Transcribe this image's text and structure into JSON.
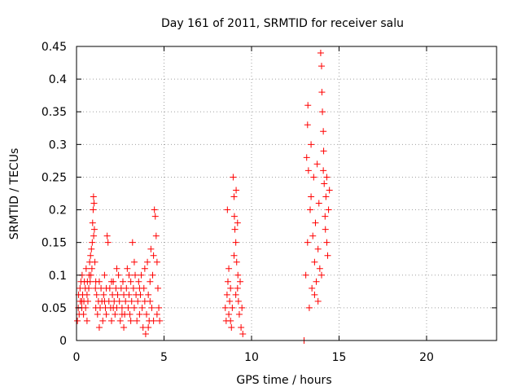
{
  "chart_data": {
    "type": "scatter",
    "title": "Day 161 of 2011, SRMTID for receiver salu",
    "xlabel": "GPS time / hours",
    "ylabel": "SRMTID / TECUs",
    "xlim": [
      0,
      24
    ],
    "ylim": [
      0,
      0.45
    ],
    "xticks": [
      0,
      5,
      10,
      15,
      20
    ],
    "xtick_labels": [
      "0",
      "5",
      "10",
      "15",
      "20"
    ],
    "yticks": [
      0,
      0.05,
      0.1,
      0.15,
      0.2,
      0.25,
      0.3,
      0.35,
      0.4,
      0.45
    ],
    "ytick_labels": [
      "0",
      "0.05",
      "0.1",
      "0.15",
      "0.2",
      "0.25",
      "0.3",
      "0.35",
      "0.4",
      "0.45"
    ],
    "grid": true,
    "marker": "plus",
    "color": "#ff0000",
    "series": [
      {
        "name": "SRMTID",
        "points": [
          [
            0.05,
            0.03
          ],
          [
            0.1,
            0.05
          ],
          [
            0.12,
            0.07
          ],
          [
            0.15,
            0.04
          ],
          [
            0.2,
            0.08
          ],
          [
            0.22,
            0.06
          ],
          [
            0.25,
            0.09
          ],
          [
            0.3,
            0.05
          ],
          [
            0.32,
            0.1
          ],
          [
            0.35,
            0.07
          ],
          [
            0.4,
            0.04
          ],
          [
            0.42,
            0.06
          ],
          [
            0.45,
            0.09
          ],
          [
            0.5,
            0.08
          ],
          [
            0.52,
            0.05
          ],
          [
            0.55,
            0.11
          ],
          [
            0.6,
            0.07
          ],
          [
            0.62,
            0.09
          ],
          [
            0.65,
            0.06
          ],
          [
            0.7,
            0.08
          ],
          [
            0.72,
            0.1
          ],
          [
            0.75,
            0.12
          ],
          [
            0.78,
            0.09
          ],
          [
            0.8,
            0.13
          ],
          [
            0.82,
            0.1
          ],
          [
            0.85,
            0.14
          ],
          [
            0.88,
            0.11
          ],
          [
            0.9,
            0.15
          ],
          [
            0.92,
            0.18
          ],
          [
            0.95,
            0.2
          ],
          [
            0.97,
            0.22
          ],
          [
            1.0,
            0.21
          ],
          [
            1.02,
            0.17
          ],
          [
            1.05,
            0.12
          ],
          [
            0.98,
            0.16
          ],
          [
            1.08,
            0.08
          ],
          [
            1.1,
            0.05
          ],
          [
            1.15,
            0.07
          ],
          [
            1.2,
            0.04
          ],
          [
            1.25,
            0.06
          ],
          [
            1.3,
            0.09
          ],
          [
            1.35,
            0.05
          ],
          [
            1.4,
            0.08
          ],
          [
            1.45,
            0.06
          ],
          [
            1.5,
            0.03
          ],
          [
            1.55,
            0.07
          ],
          [
            1.6,
            0.1
          ],
          [
            1.65,
            0.05
          ],
          [
            1.7,
            0.04
          ],
          [
            1.75,
            0.16
          ],
          [
            1.8,
            0.15
          ],
          [
            1.85,
            0.06
          ],
          [
            1.9,
            0.08
          ],
          [
            1.95,
            0.05
          ],
          [
            2.0,
            0.03
          ],
          [
            2.05,
            0.07
          ],
          [
            2.1,
            0.09
          ],
          [
            2.15,
            0.06
          ],
          [
            2.2,
            0.04
          ],
          [
            2.25,
            0.08
          ],
          [
            2.3,
            0.05
          ],
          [
            2.35,
            0.07
          ],
          [
            2.4,
            0.1
          ],
          [
            2.45,
            0.06
          ],
          [
            2.5,
            0.03
          ],
          [
            2.55,
            0.08
          ],
          [
            2.6,
            0.05
          ],
          [
            2.65,
            0.09
          ],
          [
            2.7,
            0.07
          ],
          [
            2.75,
            0.04
          ],
          [
            2.8,
            0.06
          ],
          [
            2.85,
            0.08
          ],
          [
            2.9,
            0.11
          ],
          [
            2.95,
            0.05
          ],
          [
            3.0,
            0.07
          ],
          [
            3.05,
            0.04
          ],
          [
            3.1,
            0.09
          ],
          [
            3.15,
            0.06
          ],
          [
            3.2,
            0.15
          ],
          [
            3.25,
            0.08
          ],
          [
            3.3,
            0.05
          ],
          [
            3.35,
            0.1
          ],
          [
            3.4,
            0.07
          ],
          [
            3.45,
            0.03
          ],
          [
            3.5,
            0.06
          ],
          [
            3.55,
            0.09
          ],
          [
            3.6,
            0.04
          ],
          [
            3.65,
            0.07
          ],
          [
            3.7,
            0.1
          ],
          [
            3.75,
            0.05
          ],
          [
            3.8,
            0.02
          ],
          [
            3.85,
            0.08
          ],
          [
            3.9,
            0.06
          ],
          [
            3.95,
            0.01
          ],
          [
            4.0,
            0.04
          ],
          [
            4.05,
            0.12
          ],
          [
            4.1,
            0.07
          ],
          [
            4.15,
            0.03
          ],
          [
            4.2,
            0.09
          ],
          [
            4.25,
            0.14
          ],
          [
            4.3,
            0.05
          ],
          [
            4.35,
            0.1
          ],
          [
            4.4,
            0.13
          ],
          [
            4.45,
            0.2
          ],
          [
            4.5,
            0.19
          ],
          [
            4.55,
            0.16
          ],
          [
            4.6,
            0.12
          ],
          [
            4.65,
            0.08
          ],
          [
            4.7,
            0.05
          ],
          [
            4.75,
            0.03
          ],
          [
            0.3,
            0.06
          ],
          [
            0.6,
            0.03
          ],
          [
            1.1,
            0.09
          ],
          [
            1.6,
            0.06
          ],
          [
            2.1,
            0.05
          ],
          [
            2.6,
            0.04
          ],
          [
            3.1,
            0.03
          ],
          [
            3.6,
            0.08
          ],
          [
            4.1,
            0.02
          ],
          [
            4.6,
            0.04
          ],
          [
            1.3,
            0.02
          ],
          [
            2.0,
            0.09
          ],
          [
            2.7,
            0.02
          ],
          [
            3.3,
            0.12
          ],
          [
            3.9,
            0.11
          ],
          [
            4.2,
            0.06
          ],
          [
            4.4,
            0.03
          ],
          [
            3.0,
            0.1
          ],
          [
            2.3,
            0.11
          ],
          [
            1.7,
            0.08
          ],
          [
            8.5,
            0.05
          ],
          [
            8.55,
            0.03
          ],
          [
            8.6,
            0.07
          ],
          [
            8.62,
            0.2
          ],
          [
            8.65,
            0.09
          ],
          [
            8.7,
            0.04
          ],
          [
            8.75,
            0.06
          ],
          [
            8.8,
            0.08
          ],
          [
            8.85,
            0.02
          ],
          [
            8.9,
            0.05
          ],
          [
            8.95,
            0.25
          ],
          [
            9.0,
            0.22
          ],
          [
            9.02,
            0.19
          ],
          [
            9.05,
            0.17
          ],
          [
            9.1,
            0.15
          ],
          [
            9.12,
            0.23
          ],
          [
            9.15,
            0.12
          ],
          [
            9.2,
            0.08
          ],
          [
            9.22,
            0.1
          ],
          [
            9.25,
            0.06
          ],
          [
            9.3,
            0.04
          ],
          [
            9.35,
            0.09
          ],
          [
            9.4,
            0.02
          ],
          [
            9.45,
            0.05
          ],
          [
            9.5,
            0.01
          ],
          [
            8.7,
            0.11
          ],
          [
            9.0,
            0.13
          ],
          [
            9.2,
            0.18
          ],
          [
            8.8,
            0.03
          ],
          [
            9.1,
            0.07
          ],
          [
            13.0,
            0.0
          ],
          [
            13.1,
            0.1
          ],
          [
            13.15,
            0.28
          ],
          [
            13.2,
            0.33
          ],
          [
            13.22,
            0.36
          ],
          [
            13.25,
            0.26
          ],
          [
            13.3,
            0.05
          ],
          [
            13.35,
            0.2
          ],
          [
            13.4,
            0.22
          ],
          [
            13.45,
            0.08
          ],
          [
            13.5,
            0.16
          ],
          [
            13.55,
            0.25
          ],
          [
            13.6,
            0.12
          ],
          [
            13.65,
            0.18
          ],
          [
            13.7,
            0.09
          ],
          [
            13.75,
            0.27
          ],
          [
            13.8,
            0.14
          ],
          [
            13.85,
            0.21
          ],
          [
            13.9,
            0.11
          ],
          [
            13.95,
            0.44
          ],
          [
            14.0,
            0.42
          ],
          [
            14.02,
            0.38
          ],
          [
            14.05,
            0.35
          ],
          [
            14.1,
            0.32
          ],
          [
            14.12,
            0.29
          ],
          [
            14.15,
            0.24
          ],
          [
            14.2,
            0.19
          ],
          [
            14.22,
            0.17
          ],
          [
            14.25,
            0.22
          ],
          [
            14.3,
            0.15
          ],
          [
            14.35,
            0.13
          ],
          [
            14.4,
            0.2
          ],
          [
            14.45,
            0.23
          ],
          [
            13.6,
            0.07
          ],
          [
            13.8,
            0.06
          ],
          [
            14.0,
            0.1
          ],
          [
            14.1,
            0.26
          ],
          [
            13.2,
            0.15
          ],
          [
            13.4,
            0.3
          ],
          [
            14.3,
            0.25
          ]
        ]
      }
    ]
  }
}
